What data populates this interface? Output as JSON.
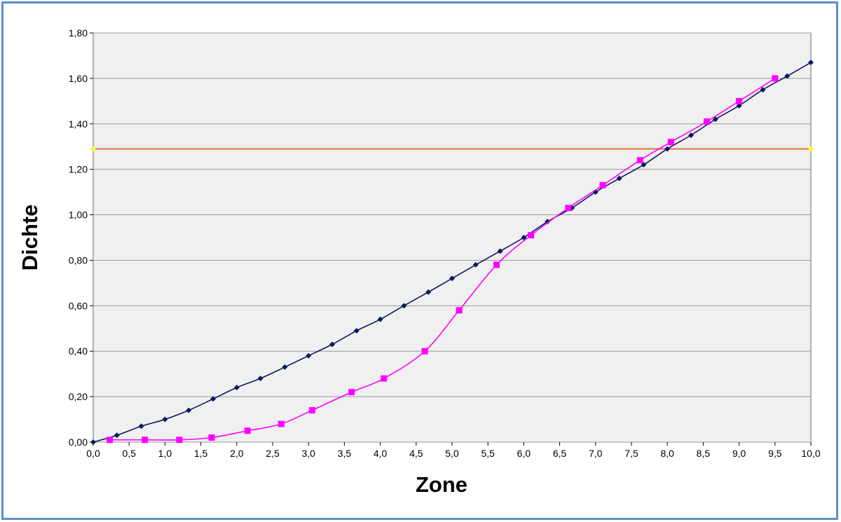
{
  "chart_data": {
    "type": "line",
    "title": "",
    "xlabel": "Zone",
    "ylabel": "Dichte",
    "xlim": [
      0,
      10
    ],
    "ylim": [
      0,
      1.8
    ],
    "grid": true,
    "legend": "none",
    "x_ticks": [
      "0,0",
      "0,5",
      "1,0",
      "1,5",
      "2,0",
      "2,5",
      "3,0",
      "3,5",
      "4,0",
      "4,5",
      "5,0",
      "5,5",
      "6,0",
      "6,5",
      "7,0",
      "7,5",
      "8,0",
      "8,5",
      "9,0",
      "9,5",
      "10,0"
    ],
    "y_ticks": [
      "0,00",
      "0,20",
      "0,40",
      "0,60",
      "0,80",
      "1,00",
      "1,20",
      "1,40",
      "1,60",
      "1,80"
    ],
    "series": [
      {
        "color": "#0a1a5e",
        "marker": "diamond",
        "x": [
          0,
          0.33,
          0.67,
          1.0,
          1.33,
          1.67,
          2.0,
          2.33,
          2.67,
          3.0,
          3.33,
          3.67,
          4.0,
          4.33,
          4.67,
          5.0,
          5.33,
          5.67,
          6.0,
          6.33,
          6.67,
          7.0,
          7.33,
          7.67,
          8.0,
          8.33,
          8.67,
          9.0,
          9.33,
          9.67,
          10.0
        ],
        "y": [
          0.0,
          0.03,
          0.07,
          0.1,
          0.14,
          0.19,
          0.24,
          0.28,
          0.33,
          0.38,
          0.43,
          0.49,
          0.54,
          0.6,
          0.66,
          0.72,
          0.78,
          0.84,
          0.9,
          0.97,
          1.03,
          1.1,
          1.16,
          1.22,
          1.29,
          1.35,
          1.42,
          1.48,
          1.55,
          1.61,
          1.67
        ]
      },
      {
        "color": "#ff00ff",
        "marker": "square",
        "x": [
          0.23,
          0.72,
          1.2,
          1.65,
          2.15,
          2.62,
          3.05,
          3.6,
          4.05,
          4.62,
          5.1,
          5.62,
          6.1,
          6.62,
          7.1,
          7.62,
          8.05,
          8.55,
          9.0,
          9.5
        ],
        "y": [
          0.01,
          0.01,
          0.01,
          0.02,
          0.05,
          0.08,
          0.14,
          0.22,
          0.28,
          0.4,
          0.58,
          0.78,
          0.91,
          1.03,
          1.13,
          1.24,
          1.32,
          1.41,
          1.5,
          1.6
        ]
      }
    ],
    "reference_line": {
      "y": 1.29,
      "color": "#e0703a",
      "endpoint_color": "#ffff33"
    }
  },
  "colors": {
    "frame": "#5b8fc9",
    "plot_bg": "#f0f0f0",
    "grid": "#9a9a9a"
  }
}
